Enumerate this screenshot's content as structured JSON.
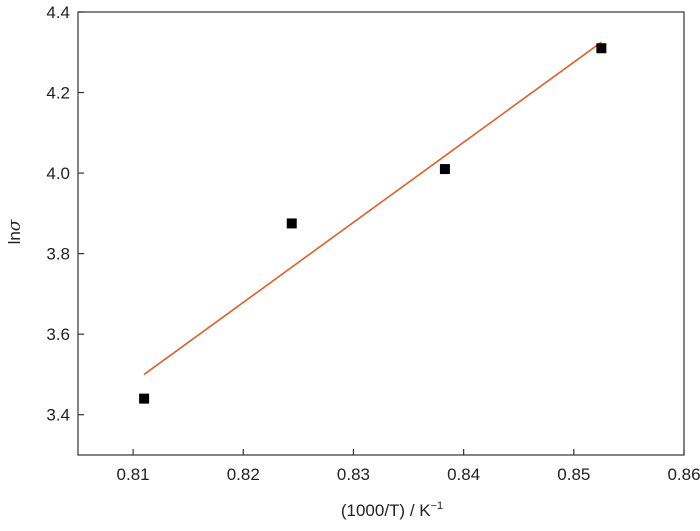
{
  "chart_data": {
    "type": "scatter",
    "title": "",
    "xlabel": {
      "main": "(1000/T) / K",
      "superscript": "−1"
    },
    "ylabel": {
      "prefix": "ln",
      "symbol": "σ"
    },
    "xlim": [
      0.805,
      0.86
    ],
    "ylim": [
      3.3,
      4.4
    ],
    "xticks": [
      0.81,
      0.82,
      0.83,
      0.84,
      0.85,
      0.86
    ],
    "xtick_labels": [
      "0.81",
      "0.82",
      "0.83",
      "0.84",
      "0.85",
      "0.86"
    ],
    "yticks": [
      3.4,
      3.6,
      3.8,
      4.0,
      4.2,
      4.4
    ],
    "ytick_labels": [
      "3.4",
      "3.6",
      "3.8",
      "4.0",
      "4.2",
      "4.4"
    ],
    "grid": false,
    "legend": "none",
    "series": [
      {
        "kind": "points",
        "marker": "square",
        "color": "#000000",
        "x": [
          0.811,
          0.8244,
          0.8383,
          0.8525
        ],
        "y": [
          3.44,
          3.875,
          4.01,
          4.31
        ]
      },
      {
        "kind": "fit-line",
        "color": "#e0602a",
        "x": [
          0.811,
          0.8525
        ],
        "y": [
          3.5,
          4.325
        ]
      }
    ]
  }
}
